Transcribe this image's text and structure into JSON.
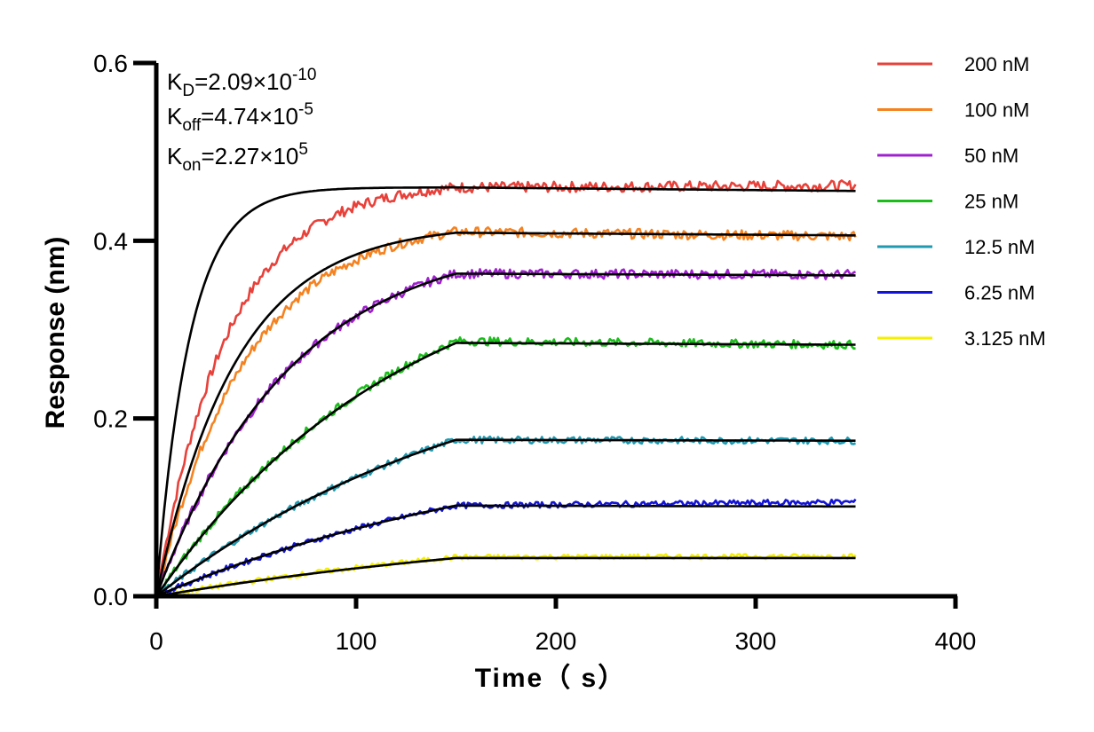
{
  "chart_data": {
    "type": "line",
    "title": "",
    "xlabel": "Time（ s）",
    "ylabel": "Response (nm)",
    "xlim": [
      0,
      400
    ],
    "ylim": [
      0,
      0.6
    ],
    "x_ticks": [
      "0",
      "100",
      "200",
      "300",
      "400"
    ],
    "y_ticks": [
      "0.0",
      "0.2",
      "0.4",
      "0.6"
    ],
    "grid": false,
    "legend_position": "top-right",
    "association_end_s": 150,
    "dissociation_end_s": 350,
    "annotations": {
      "kd": {
        "prefix": "K",
        "sub": "D",
        "mid": "=2.09×10",
        "sup": "-10"
      },
      "koff": {
        "prefix": "K",
        "sub": "off",
        "mid": "=4.74×10",
        "sup": "-5"
      },
      "kon": {
        "prefix": "K",
        "sub": "on",
        "mid": "=2.27×10",
        "sup": "5"
      }
    },
    "fit_color": "#000000",
    "series": [
      {
        "name": "200 nM",
        "color": "#e8413a",
        "plateau": 0.46,
        "end": 0.462,
        "fit_plateau": 0.46,
        "fit_end": 0.456
      },
      {
        "name": "100 nM",
        "color": "#f58220",
        "plateau": 0.41,
        "end": 0.405,
        "fit_plateau": 0.409,
        "fit_end": 0.406
      },
      {
        "name": "50 nM",
        "color": "#a01fd0",
        "plateau": 0.363,
        "end": 0.362,
        "fit_plateau": 0.363,
        "fit_end": 0.361
      },
      {
        "name": "25 nM",
        "color": "#1bbd1b",
        "plateau": 0.287,
        "end": 0.283,
        "fit_plateau": 0.285,
        "fit_end": 0.283
      },
      {
        "name": "12.5 nM",
        "color": "#1f9ab0",
        "plateau": 0.176,
        "end": 0.175,
        "fit_plateau": 0.176,
        "fit_end": 0.175
      },
      {
        "name": "6.25 nM",
        "color": "#1414d8",
        "plateau": 0.102,
        "end": 0.106,
        "fit_plateau": 0.102,
        "fit_end": 0.101
      },
      {
        "name": "3.125 nM",
        "color": "#f5f000",
        "plateau": 0.044,
        "end": 0.045,
        "fit_plateau": 0.043,
        "fit_end": 0.043
      }
    ]
  }
}
